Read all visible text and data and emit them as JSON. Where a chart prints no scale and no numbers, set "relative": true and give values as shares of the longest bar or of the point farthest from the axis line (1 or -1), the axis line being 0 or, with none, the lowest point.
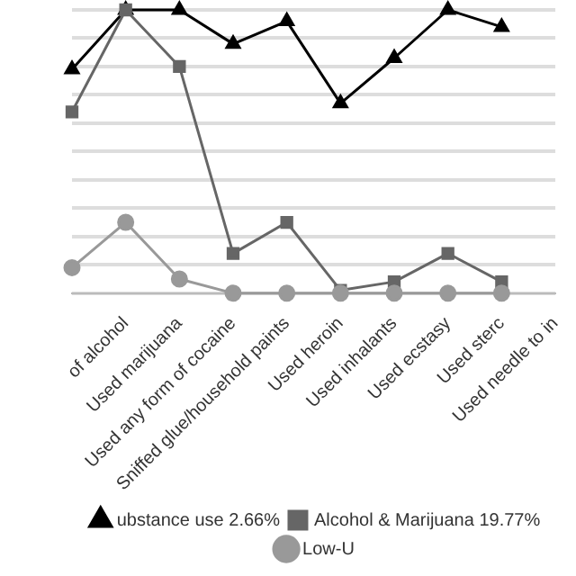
{
  "chart_data": {
    "type": "line",
    "relative": true,
    "grid": "y",
    "legend": "bottom",
    "line_style": "solid",
    "categories": [
      null,
      "of alcohol",
      "Used marijuana",
      "Used any form of cocaine",
      "Sniffed glue/household paints",
      "Used heroin",
      "Used inhalants",
      "Used ecstasy",
      "Used sterc",
      "Used needle to in"
    ],
    "series": [
      {
        "name": "ubstance use 2.66%",
        "color": "#000000",
        "marker": "triangle",
        "values": [
          0.79,
          1,
          1,
          0.88,
          0.96,
          0.67,
          0.83,
          1,
          0.94,
          null
        ]
      },
      {
        "name": "Alcohol & Marijuana 19.77%",
        "color": "#666666",
        "marker": "square",
        "values": [
          0.64,
          1,
          0.8,
          0.14,
          0.25,
          0.01,
          0.04,
          0.14,
          0.04,
          null
        ]
      },
      {
        "name": "Low-U",
        "color": "#999999",
        "marker": "circle",
        "values": [
          0.09,
          0.25,
          0.05,
          0,
          0,
          0,
          0,
          0,
          0,
          null
        ]
      }
    ]
  }
}
